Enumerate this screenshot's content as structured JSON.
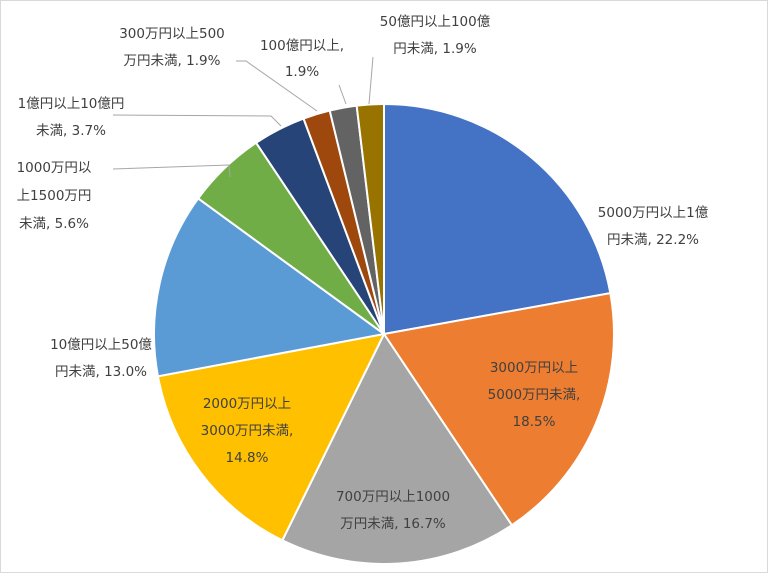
{
  "chart_data": {
    "type": "pie",
    "title": "",
    "slices": [
      {
        "label_lines": [
          "5000万円以上1億",
          "円未満, 22.2%"
        ],
        "name": "5000万円以上1億円未満",
        "value": 22.2,
        "color": "#4472c4"
      },
      {
        "label_lines": [
          "3000万円以上",
          "5000万円未満,",
          "18.5%"
        ],
        "name": "3000万円以上5000万円未満",
        "value": 18.5,
        "color": "#ed7d31"
      },
      {
        "label_lines": [
          "700万円以上1000",
          "万円未満, 16.7%"
        ],
        "name": "700万円以上1000万円未満",
        "value": 16.7,
        "color": "#a5a5a5"
      },
      {
        "label_lines": [
          "2000万円以上",
          "3000万円未満,",
          "14.8%"
        ],
        "name": "2000万円以上3000万円未満",
        "value": 14.8,
        "color": "#ffc000"
      },
      {
        "label_lines": [
          "10億円以上50億",
          "円未満, 13.0%"
        ],
        "name": "10億円以上50億円未満",
        "value": 13.0,
        "color": "#5b9bd5"
      },
      {
        "label_lines": [
          "1000万円以",
          "上1500万円",
          "未満, 5.6%"
        ],
        "name": "1000万円以上1500万円未満",
        "value": 5.6,
        "color": "#70ad47"
      },
      {
        "label_lines": [
          "1億円以上10億円",
          "未満, 3.7%"
        ],
        "name": "1億円以上10億円未満",
        "value": 3.7,
        "color": "#264478"
      },
      {
        "label_lines": [
          "300万円以上500",
          "万円未満, 1.9%"
        ],
        "name": "300万円以上500万円未満",
        "value": 1.9,
        "color": "#9e480e"
      },
      {
        "label_lines": [
          "100億円以上,",
          "1.9%"
        ],
        "name": "100億円以上",
        "value": 1.9,
        "color": "#636363"
      },
      {
        "label_lines": [
          "50億円以上100億",
          "円未満, 1.9%"
        ],
        "name": "50億円以上100億円未満",
        "value": 1.9,
        "color": "#997300"
      }
    ],
    "legend": "none",
    "start_angle": "12 o'clock",
    "direction": "clockwise"
  }
}
